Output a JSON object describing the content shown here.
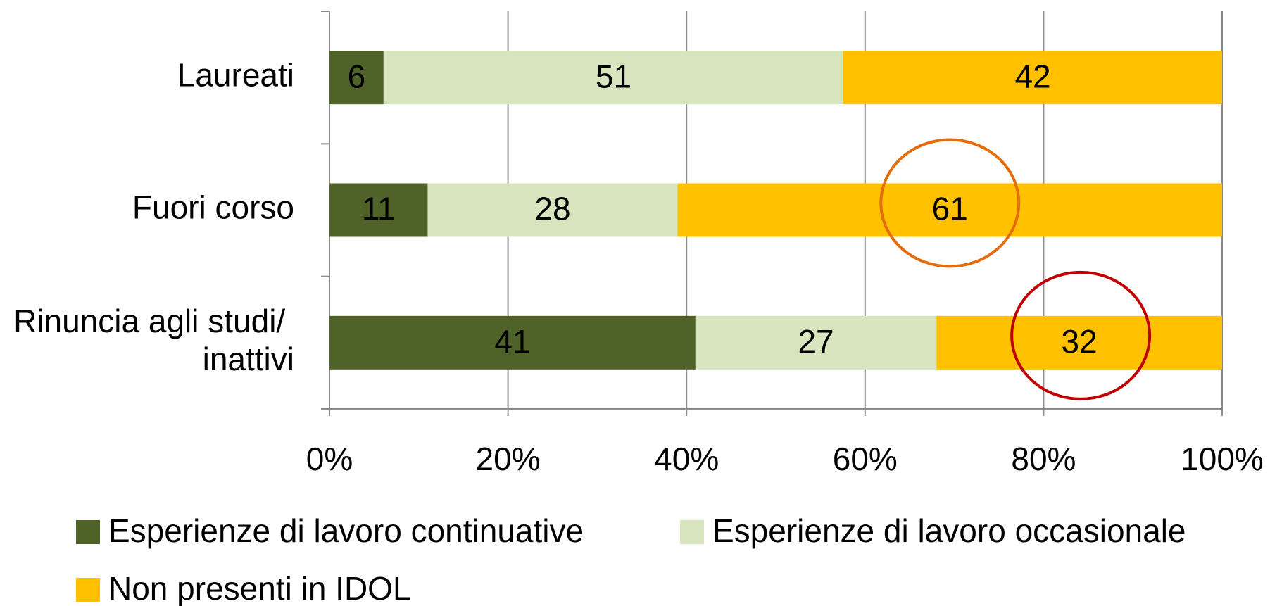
{
  "chart_data": {
    "type": "bar",
    "orientation": "horizontal",
    "stacking": "percent",
    "categories": [
      "Laureati",
      "Fuori corso",
      "Rinuncia agli studi/ inattivi"
    ],
    "series": [
      {
        "name": "Esperienze di lavoro continuative",
        "color": "#4f6228",
        "values": [
          6,
          11,
          41
        ]
      },
      {
        "name": "Esperienze di lavoro occasionale",
        "color": "#d7e4bd",
        "values": [
          51,
          28,
          27
        ]
      },
      {
        "name": "Non presenti in IDOL",
        "color": "#ffc000",
        "values": [
          42,
          61,
          32
        ]
      }
    ],
    "xlim": [
      0,
      100
    ],
    "xticks": [
      {
        "value": 0,
        "label": "0%"
      },
      {
        "value": 20,
        "label": "20%"
      },
      {
        "value": 40,
        "label": "40%"
      },
      {
        "value": 60,
        "label": "60%"
      },
      {
        "value": 80,
        "label": "80%"
      },
      {
        "value": 100,
        "label": "100%"
      }
    ],
    "grid": true,
    "legend": "bottom"
  }
}
